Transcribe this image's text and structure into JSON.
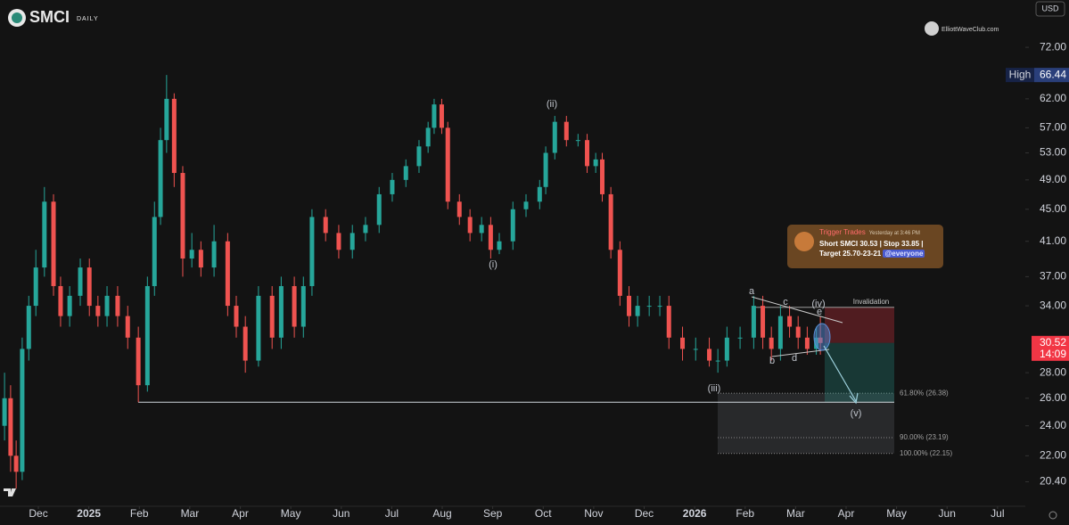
{
  "chart_data": {
    "type": "candlestick",
    "ticker": "SMCI",
    "interval": "DAILY",
    "currency": "USD",
    "watermark": "ElliottWaveClub.com",
    "x": [
      0.33,
      0.45,
      0.56,
      0.68,
      0.81,
      0.95,
      1.12,
      1.3,
      1.44,
      1.62,
      1.83,
      2.01,
      2.18,
      2.36,
      2.57,
      2.77,
      2.98,
      3.16,
      3.3,
      3.42,
      3.54,
      3.69,
      3.86,
      4.04,
      4.22,
      4.48,
      4.75,
      4.92,
      5.1,
      5.36,
      5.63,
      5.81,
      6.07,
      6.25,
      6.42,
      6.69,
      6.95,
      7.22,
      7.48,
      7.75,
      8.01,
      8.28,
      8.54,
      8.72,
      8.84,
      8.99,
      9.11,
      9.34,
      9.55,
      9.78,
      9.96,
      10.13,
      10.4,
      10.66,
      10.93,
      11.05,
      11.23,
      11.46,
      11.69,
      11.87,
      12.04,
      12.17,
      12.34,
      12.52,
      12.7,
      12.87,
      13.1,
      13.31,
      13.49,
      13.76,
      14.02,
      14.29,
      14.46,
      14.64,
      14.9,
      15.17,
      15.35,
      15.52,
      15.7,
      15.88,
      16.05,
      16.23,
      16.41,
      16.49
    ],
    "open": [
      24,
      26,
      22,
      21,
      30,
      34,
      38,
      46,
      36,
      33,
      35,
      38,
      34,
      33,
      35,
      33,
      31,
      27,
      36,
      44,
      55,
      62,
      50,
      39,
      40,
      38,
      41,
      34,
      32,
      29,
      35,
      31,
      36,
      32,
      36,
      44,
      42,
      40,
      42,
      43,
      47,
      49,
      51,
      54,
      57,
      61,
      57,
      46,
      44,
      42,
      43,
      40,
      41,
      45,
      46,
      48,
      53,
      58,
      55,
      55,
      51,
      52,
      47,
      40,
      35,
      33,
      34,
      34,
      34,
      31,
      30,
      30,
      29,
      29,
      31,
      31,
      34,
      31,
      30,
      33,
      32,
      31,
      30,
      31
    ],
    "high": [
      28,
      27,
      23,
      31,
      35,
      40,
      48,
      47,
      37,
      36,
      39,
      39,
      35,
      36,
      36,
      34,
      32,
      37,
      46,
      57,
      66.44,
      63,
      51,
      42,
      41,
      43,
      42,
      35,
      33,
      36,
      36,
      37,
      37,
      37,
      45,
      45,
      43,
      43,
      44,
      48,
      50,
      52,
      55,
      58,
      62,
      62,
      58,
      47,
      45,
      44,
      44,
      42,
      46,
      47,
      49,
      54,
      59,
      59,
      56,
      56,
      53,
      53,
      48,
      41,
      36,
      35,
      35,
      35,
      35,
      32,
      31,
      31,
      30,
      32,
      32,
      35,
      35,
      32,
      34,
      34,
      33,
      32,
      32,
      33
    ],
    "low": [
      23,
      21,
      20,
      20.5,
      29,
      33,
      37,
      35,
      32,
      32,
      34,
      33,
      32,
      32,
      32,
      30,
      25.7,
      26.5,
      35,
      43,
      53,
      48,
      37,
      38,
      37,
      37,
      33,
      31,
      28,
      28.5,
      30,
      30,
      31,
      31,
      35,
      41,
      39,
      39,
      41,
      42,
      46,
      48,
      50,
      53,
      56,
      56,
      45,
      43,
      41,
      41,
      39,
      39.5,
      40,
      44,
      45,
      47,
      52,
      54,
      54,
      50,
      50,
      46,
      39,
      34,
      32,
      32,
      33,
      33,
      30,
      29,
      29,
      28.5,
      28,
      28.5,
      30,
      30,
      30,
      29,
      29,
      31,
      30,
      29.5,
      29.5,
      29.5
    ],
    "close": [
      26,
      22,
      21,
      30,
      34,
      38,
      46,
      36,
      33,
      35,
      38,
      34,
      33,
      35,
      33,
      31,
      27,
      36,
      44,
      55,
      62,
      50,
      39,
      40,
      38,
      41,
      34,
      32,
      29,
      35,
      31,
      36,
      32,
      36,
      44,
      42,
      40,
      42,
      43,
      47,
      49,
      51,
      54,
      57,
      61,
      57,
      46,
      44,
      42,
      43,
      40,
      41,
      45,
      46,
      48,
      53,
      58,
      55,
      55,
      51,
      52,
      47,
      40,
      35,
      33,
      34,
      34,
      34,
      31,
      30,
      30,
      29,
      29,
      31,
      31,
      34,
      31,
      30,
      33,
      32,
      31,
      30,
      31,
      30.52
    ],
    "up_color": "#26a69a",
    "down_color": "#ef5350",
    "xlim": [
      0.24,
      20.55
    ],
    "xticks": [
      {
        "value": 1,
        "label": "Dec"
      },
      {
        "value": 2,
        "label": "2025"
      },
      {
        "value": 3,
        "label": "Feb"
      },
      {
        "value": 4,
        "label": "Mar"
      },
      {
        "value": 5,
        "label": "Apr"
      },
      {
        "value": 6,
        "label": "May"
      },
      {
        "value": 7,
        "label": "Jun"
      },
      {
        "value": 8,
        "label": "Jul"
      },
      {
        "value": 9,
        "label": "Aug"
      },
      {
        "value": 10,
        "label": "Sep"
      },
      {
        "value": 11,
        "label": "Oct"
      },
      {
        "value": 12,
        "label": "Nov"
      },
      {
        "value": 13,
        "label": "Dec"
      },
      {
        "value": 14,
        "label": "2026"
      },
      {
        "value": 15,
        "label": "Feb"
      },
      {
        "value": 16,
        "label": "Mar"
      },
      {
        "value": 17,
        "label": "Apr"
      },
      {
        "value": 18,
        "label": "May"
      },
      {
        "value": 19,
        "label": "Jun"
      },
      {
        "value": 20,
        "label": "Jul"
      }
    ],
    "ylim": [
      19,
      82.6
    ],
    "log_scale": true,
    "yticks": [
      {
        "value": 72,
        "label": "72.00"
      },
      {
        "value": 62,
        "label": "62.00"
      },
      {
        "value": 57,
        "label": "57.00"
      },
      {
        "value": 53,
        "label": "53.00"
      },
      {
        "value": 49,
        "label": "49.00"
      },
      {
        "value": 45,
        "label": "45.00"
      },
      {
        "value": 41,
        "label": "41.00"
      },
      {
        "value": 37,
        "label": "37.00"
      },
      {
        "value": 34,
        "label": "34.00"
      },
      {
        "value": 28,
        "label": "28.00"
      },
      {
        "value": 26,
        "label": "26.00"
      },
      {
        "value": 24,
        "label": "24.00"
      },
      {
        "value": 22,
        "label": "22.00"
      },
      {
        "value": 20.4,
        "label": "20.40"
      }
    ],
    "high_label": "High",
    "countdown": "14:09",
    "annotations": [
      "(i)",
      "(ii)",
      "(iii)",
      "(iv)",
      "(v)",
      "a",
      "b",
      "c",
      "d",
      "e"
    ],
    "fib_levels": [
      {
        "value": 26.38,
        "label": "61.80% (26.38)"
      },
      {
        "value": 23.19,
        "label": "90.00% (23.19)"
      },
      {
        "value": 22.15,
        "label": "100.00% (22.15)"
      }
    ],
    "invalidation": "Invalidation",
    "position": {
      "entry": 30.53,
      "stop": 33.85,
      "target": 25.7
    },
    "message": {
      "author": "Trigger Trades",
      "time": "Yesterday at 3:46 PM",
      "text": "Short SMCI 30.53 | Stop 33.85 | Target 25.70-23-21",
      "mention": "@everyone"
    }
  }
}
